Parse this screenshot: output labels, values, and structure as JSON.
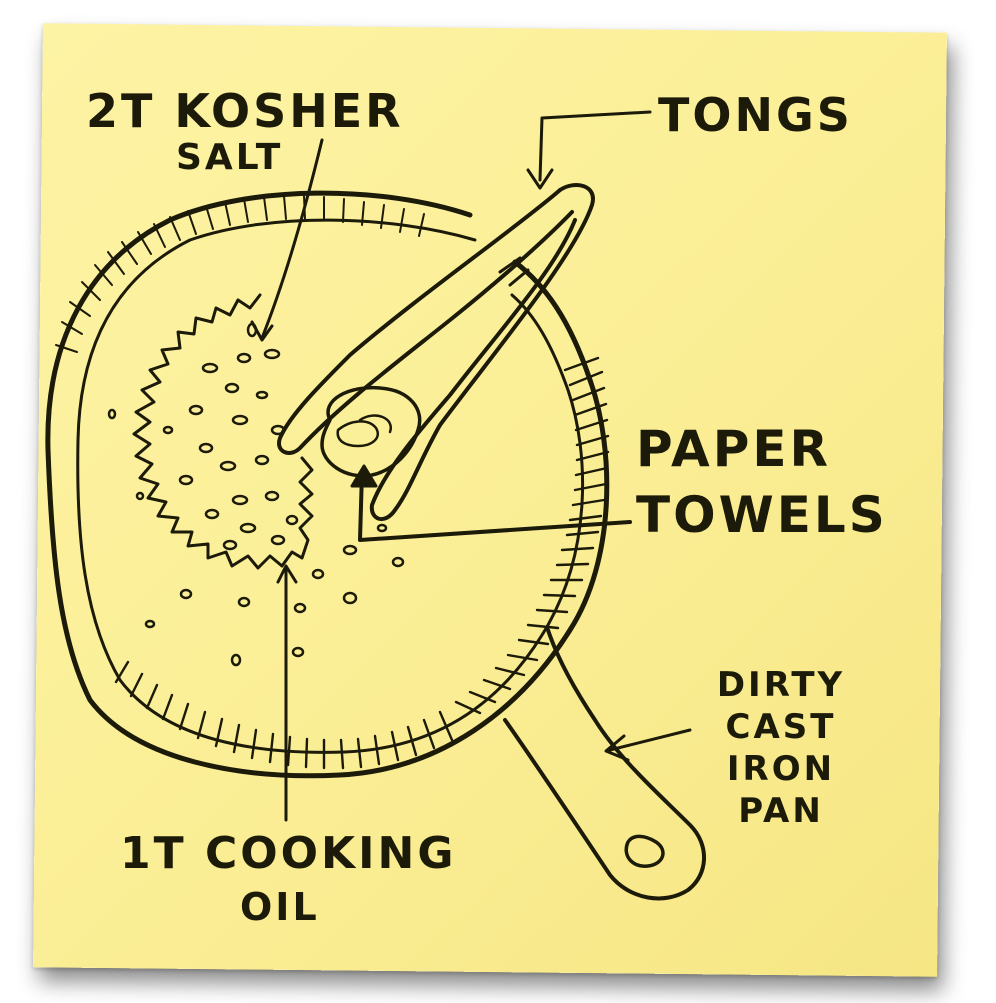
{
  "labels": {
    "salt_line1": "2T KOSHER",
    "salt_line2": "SALT",
    "tongs": "TONGS",
    "paper_line1": "PAPER",
    "paper_line2": "TOWELS",
    "oil_line1": "1T COOKING",
    "oil_line2": "OIL",
    "pan_line1": "DIRTY",
    "pan_line2": "CAST",
    "pan_line3": "IRON",
    "pan_line4": "PAN"
  },
  "colors": {
    "note_paper": "#fbef98",
    "ink": "#1c1a08"
  }
}
